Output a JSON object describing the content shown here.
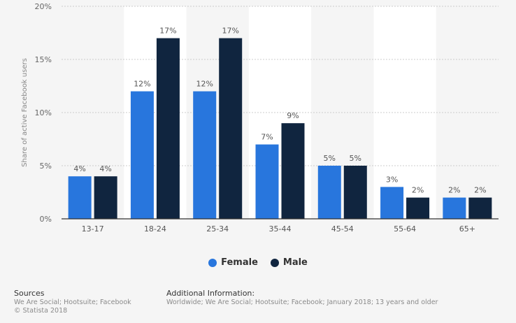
{
  "chart_data": {
    "type": "bar",
    "ylabel": "Share of active Facebook users",
    "xlabel": "",
    "ylim": [
      0,
      20
    ],
    "yticks": [
      "0%",
      "5%",
      "10%",
      "15%",
      "20%"
    ],
    "ytick_values": [
      0,
      5,
      10,
      15,
      20
    ],
    "categories": [
      "13-17",
      "18-24",
      "25-34",
      "35-44",
      "45-54",
      "55-64",
      "65+"
    ],
    "series": [
      {
        "name": "Female",
        "color": "#2876dd",
        "values": [
          4,
          12,
          12,
          7,
          5,
          3,
          2
        ],
        "labels": [
          "4%",
          "12%",
          "12%",
          "7%",
          "5%",
          "3%",
          "2%"
        ]
      },
      {
        "name": "Male",
        "color": "#10253f",
        "values": [
          4,
          17,
          17,
          9,
          5,
          2,
          2
        ],
        "labels": [
          "4%",
          "17%",
          "17%",
          "9%",
          "5%",
          "2%",
          "2%"
        ]
      }
    ],
    "grid": true,
    "legend_position": "bottom-center"
  },
  "footer": {
    "sources_title": "Sources",
    "sources_text": "We Are Social; Hootsuite; Facebook",
    "copyright": "© Statista 2018",
    "info_title": "Additional Information:",
    "info_text": "Worldwide; We Are Social; Hootsuite; Facebook; January 2018; 13 years and older"
  }
}
